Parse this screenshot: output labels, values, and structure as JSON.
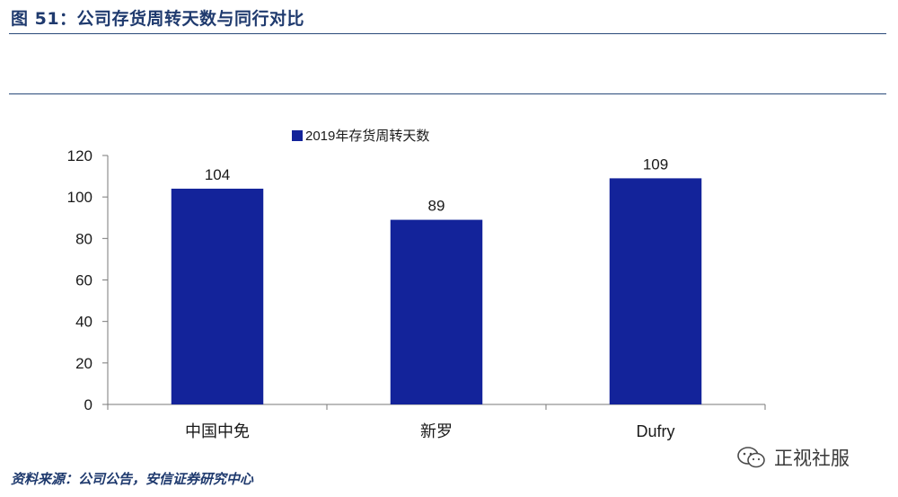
{
  "header": {
    "title": "图 51：公司存货周转天数与同行对比"
  },
  "footer": {
    "source": "资料来源：公司公告，安信证券研究中心",
    "watermark_text": "正视社服"
  },
  "colors": {
    "bar": "#13239a",
    "title": "#1f3a6e",
    "rule": "#2a4a7a"
  },
  "chart_data": {
    "type": "bar",
    "categories": [
      "中国中免",
      "新罗",
      "Dufry"
    ],
    "series": [
      {
        "name": "2019年存货周转天数",
        "values": [
          104,
          89,
          109
        ]
      }
    ],
    "data_labels": [
      "104",
      "89",
      "109"
    ],
    "yticks": [
      "0",
      "20",
      "40",
      "60",
      "80",
      "100",
      "120"
    ],
    "ylim": [
      0,
      120
    ],
    "title": "",
    "xlabel": "",
    "ylabel": "",
    "grid": false,
    "legend_position": "top"
  }
}
